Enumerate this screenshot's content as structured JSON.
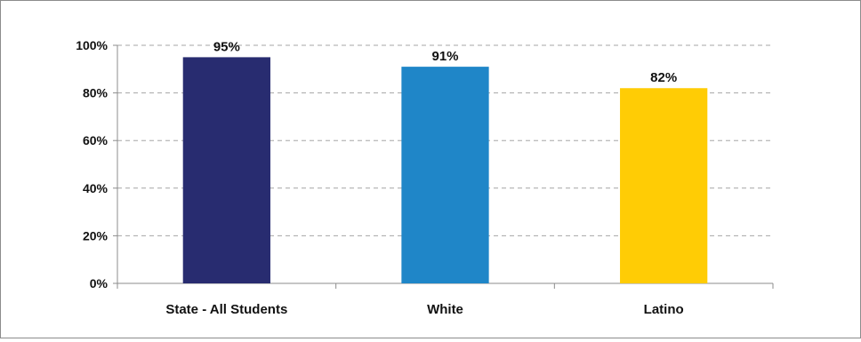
{
  "chart_data": {
    "type": "bar",
    "categories": [
      "State - All Students",
      "White",
      "Latino"
    ],
    "values": [
      95,
      91,
      82
    ],
    "data_labels": [
      "95%",
      "91%",
      "82%"
    ],
    "colors": [
      "#282C70",
      "#1F86C8",
      "#FFCC05"
    ],
    "yticks": [
      0,
      20,
      40,
      60,
      80,
      100
    ],
    "ytick_labels": [
      "0%",
      "20%",
      "40%",
      "60%",
      "80%",
      "100%"
    ],
    "ylim": [
      0,
      100
    ],
    "grid": true,
    "grid_style": "dashed",
    "legend": "none",
    "title": "",
    "xlabel": "",
    "ylabel": ""
  }
}
